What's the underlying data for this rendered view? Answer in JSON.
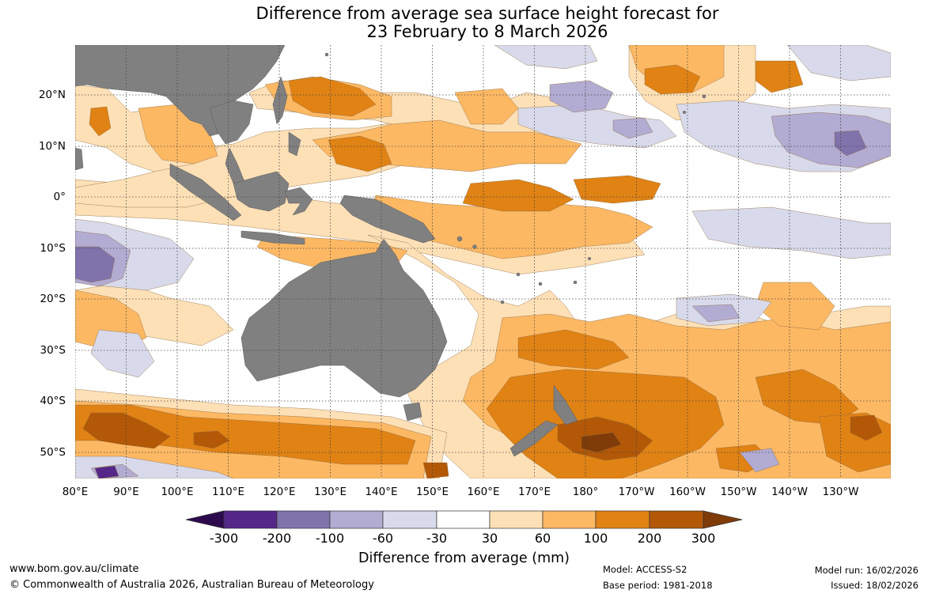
{
  "title": {
    "line1": "Difference from average sea surface height forecast for",
    "line2": "23 February to 8 March 2026"
  },
  "map": {
    "longitude_labels": [
      "80°E",
      "90°E",
      "100°E",
      "110°E",
      "120°E",
      "130°E",
      "140°E",
      "150°E",
      "160°E",
      "170°E",
      "180°",
      "170°W",
      "160°W",
      "150°W",
      "140°W",
      "130°W"
    ],
    "latitude_labels": [
      "20°N",
      "10°N",
      "0°",
      "10°S",
      "20°S",
      "30°S",
      "40°S",
      "50°S"
    ],
    "land_color": "#808080",
    "gridline_style": "dotted"
  },
  "colorbar": {
    "title": "Difference from average (mm)",
    "labels": [
      "-300",
      "-200",
      "-100",
      "-60",
      "-30",
      "30",
      "60",
      "100",
      "200",
      "300"
    ],
    "colors": [
      "#2d0a4e",
      "#542788",
      "#8073ac",
      "#b2abd2",
      "#d8daeb",
      "#ffffff",
      "#fee0b6",
      "#fdb863",
      "#e08214",
      "#b35806",
      "#7f3b08"
    ]
  },
  "footer": {
    "url": "www.bom.gov.au/climate",
    "copyright": "© Commonwealth of Australia 2026, Australian Bureau of Meteorology",
    "model": "Model: ACCESS-S2",
    "base_period": "Base period: 1981-2018",
    "model_run": "Model run: 16/02/2026",
    "issued": "Issued: 18/02/2026"
  }
}
